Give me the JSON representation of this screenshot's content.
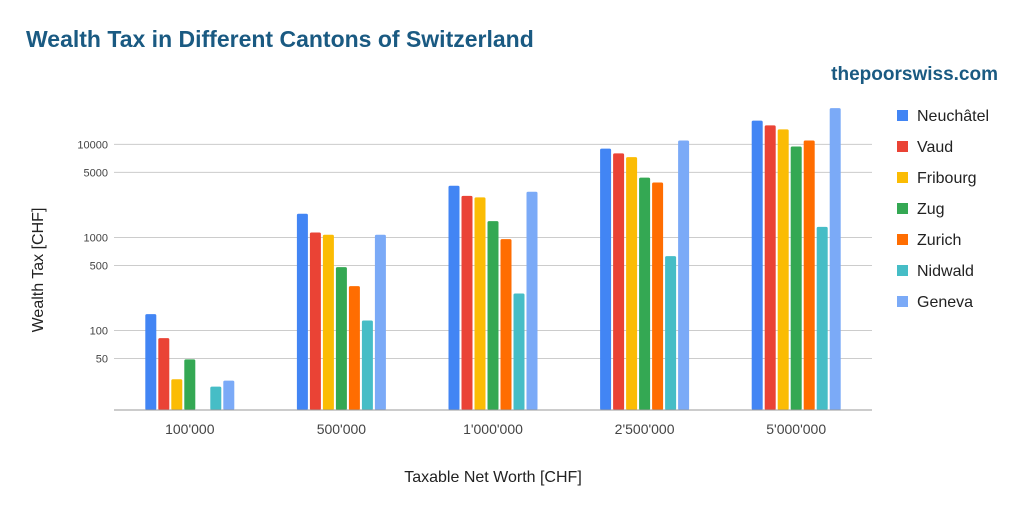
{
  "header": {
    "title": "Wealth Tax in Different Cantons of Switzerland",
    "brand": "thepoorswiss.com"
  },
  "chart_data": {
    "type": "bar",
    "title": "Wealth Tax in Different Cantons of Switzerland",
    "xlabel": "Taxable Net Worth [CHF]",
    "ylabel": "Wealth Tax [CHF]",
    "yscale": "log",
    "ylim": [
      14,
      30000
    ],
    "yticks": [
      50,
      100,
      500,
      1000,
      5000,
      10000
    ],
    "grid": true,
    "legend_position": "right",
    "categories": [
      "100'000",
      "500'000",
      "1'000'000",
      "2'500'000",
      "5'000'000"
    ],
    "series": [
      {
        "name": "Neuchâtel",
        "color": "#4285f4",
        "values": [
          150,
          1800,
          3600,
          9000,
          18000
        ]
      },
      {
        "name": "Vaud",
        "color": "#ea4335",
        "values": [
          83,
          1130,
          2800,
          8000,
          16000
        ]
      },
      {
        "name": "Fribourg",
        "color": "#fbbc04",
        "values": [
          30,
          1070,
          2700,
          7300,
          14500
        ]
      },
      {
        "name": "Zug",
        "color": "#34a853",
        "values": [
          49,
          480,
          1500,
          4400,
          9500
        ]
      },
      {
        "name": "Zurich",
        "color": "#ff6d01",
        "values": [
          null,
          300,
          960,
          3900,
          11000
        ]
      },
      {
        "name": "Nidwald",
        "color": "#46bdc6",
        "values": [
          25,
          128,
          250,
          630,
          1300
        ]
      },
      {
        "name": "Geneva",
        "color": "#7baaf7",
        "values": [
          29,
          1070,
          3100,
          11000,
          24500
        ]
      }
    ]
  }
}
